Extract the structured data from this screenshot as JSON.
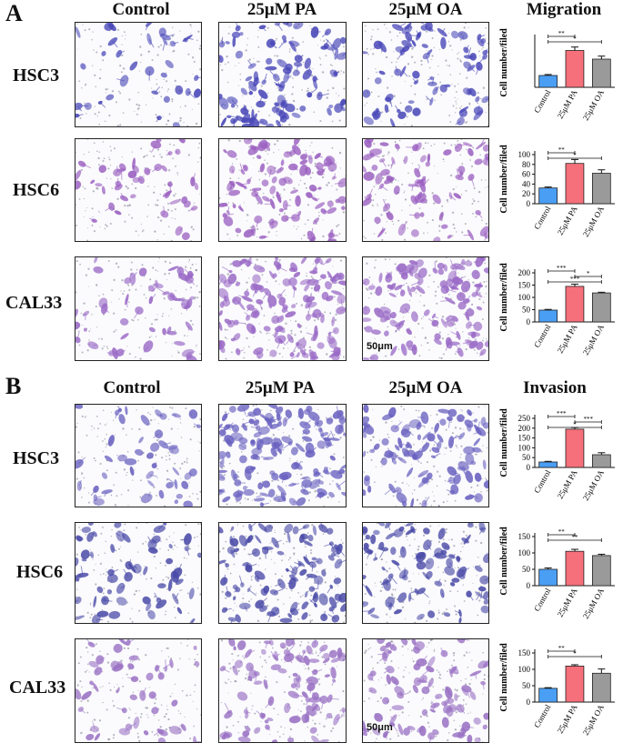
{
  "panels": [
    {
      "letter": "A",
      "columns": [
        "Control",
        "25μM PA",
        "25μM OA"
      ],
      "assay": "Migration",
      "scale_bar": "50μm",
      "rows": [
        {
          "cell_line": "HSC3",
          "stain_color": "#4a48b8",
          "density": [
            0.12,
            0.55,
            0.38
          ],
          "chart_data": {
            "type": "bar",
            "ylabel": "Cell number/filed",
            "categories": [
              "Control",
              "25μM PA",
              "25μM OA"
            ],
            "values": [
              48,
              150,
              115
            ],
            "errors": [
              4,
              14,
              12
            ],
            "ylim": [
              0,
              200
            ],
            "yticks": [],
            "colors": [
              "#4a9ff5",
              "#f5707a",
              "#9a9a9a"
            ],
            "sig": [
              {
                "from": 0,
                "to": 1,
                "label": "**"
              },
              {
                "from": 0,
                "to": 2,
                "label": "*"
              }
            ]
          }
        },
        {
          "cell_line": "HSC6",
          "stain_color": "#9a5fc0",
          "density": [
            0.18,
            0.5,
            0.35
          ],
          "chart_data": {
            "type": "bar",
            "ylabel": "Cell number/filed",
            "categories": [
              "Control",
              "25μM PA",
              "25μM OA"
            ],
            "values": [
              32,
              82,
              62
            ],
            "errors": [
              2,
              8,
              7
            ],
            "ylim": [
              0,
              100
            ],
            "yticks": [
              "0",
              "20",
              "40",
              "60",
              "80",
              "100"
            ],
            "colors": [
              "#4a9ff5",
              "#f5707a",
              "#9a9a9a"
            ],
            "sig": [
              {
                "from": 0,
                "to": 1,
                "label": "**"
              },
              {
                "from": 0,
                "to": 2,
                "label": "*"
              }
            ]
          }
        },
        {
          "cell_line": "CAL33",
          "stain_color": "#9a6ac6",
          "density": [
            0.22,
            0.78,
            0.62
          ],
          "chart_data": {
            "type": "bar",
            "ylabel": "Cell number/filed",
            "categories": [
              "Control",
              "25μM PA",
              "25μM OA"
            ],
            "values": [
              48,
              145,
              118
            ],
            "errors": [
              3,
              9,
              3
            ],
            "ylim": [
              0,
              200
            ],
            "yticks": [
              "0",
              "50",
              "100",
              "150",
              "200"
            ],
            "colors": [
              "#4a9ff5",
              "#f5707a",
              "#9a9a9a"
            ],
            "sig": [
              {
                "from": 0,
                "to": 1,
                "label": "***"
              },
              {
                "from": 1,
                "to": 2,
                "label": "*"
              },
              {
                "from": 0,
                "to": 2,
                "label": "***"
              }
            ]
          }
        }
      ]
    },
    {
      "letter": "B",
      "columns": [
        "Control",
        "25μM PA",
        "25μM OA"
      ],
      "assay": "Invasion",
      "scale_bar": "50μm",
      "rows": [
        {
          "cell_line": "HSC3",
          "stain_color": "#6a62c0",
          "density": [
            0.2,
            0.8,
            0.5
          ],
          "chart_data": {
            "type": "bar",
            "ylabel": "Cell number/filed",
            "categories": [
              "Control",
              "25μM PA",
              "25μM OA"
            ],
            "values": [
              28,
              195,
              65
            ],
            "errors": [
              3,
              8,
              10
            ],
            "ylim": [
              0,
              250
            ],
            "yticks": [
              "0",
              "50",
              "100",
              "150",
              "200",
              "250"
            ],
            "colors": [
              "#4a9ff5",
              "#f5707a",
              "#9a9a9a"
            ],
            "sig": [
              {
                "from": 0,
                "to": 1,
                "label": "***"
              },
              {
                "from": 1,
                "to": 2,
                "label": "***"
              },
              {
                "from": 0,
                "to": 2,
                "label": "*"
              }
            ]
          }
        },
        {
          "cell_line": "HSC6",
          "stain_color": "#4a4aa8",
          "density": [
            0.3,
            0.55,
            0.45
          ],
          "chart_data": {
            "type": "bar",
            "ylabel": "Cell number/filed",
            "categories": [
              "Control",
              "25μM PA",
              "25μM OA"
            ],
            "values": [
              50,
              105,
              92
            ],
            "errors": [
              4,
              6,
              4
            ],
            "ylim": [
              0,
              150
            ],
            "yticks": [
              "0",
              "50",
              "100",
              "150"
            ],
            "colors": [
              "#4a9ff5",
              "#f5707a",
              "#9a9a9a"
            ],
            "sig": [
              {
                "from": 0,
                "to": 1,
                "label": "**"
              },
              {
                "from": 0,
                "to": 2,
                "label": "**"
              }
            ]
          }
        },
        {
          "cell_line": "CAL33",
          "stain_color": "#9a72c4",
          "density": [
            0.2,
            0.5,
            0.45
          ],
          "chart_data": {
            "type": "bar",
            "ylabel": "Cell number/filed",
            "categories": [
              "Control",
              "25μM PA",
              "25μM OA"
            ],
            "values": [
              42,
              110,
              88
            ],
            "errors": [
              2,
              4,
              13
            ],
            "ylim": [
              0,
              150
            ],
            "yticks": [
              "0",
              "50",
              "100",
              "150"
            ],
            "colors": [
              "#4a9ff5",
              "#f5707a",
              "#9a9a9a"
            ],
            "sig": [
              {
                "from": 0,
                "to": 1,
                "label": "**"
              },
              {
                "from": 0,
                "to": 2,
                "label": "*"
              }
            ]
          }
        }
      ]
    }
  ]
}
